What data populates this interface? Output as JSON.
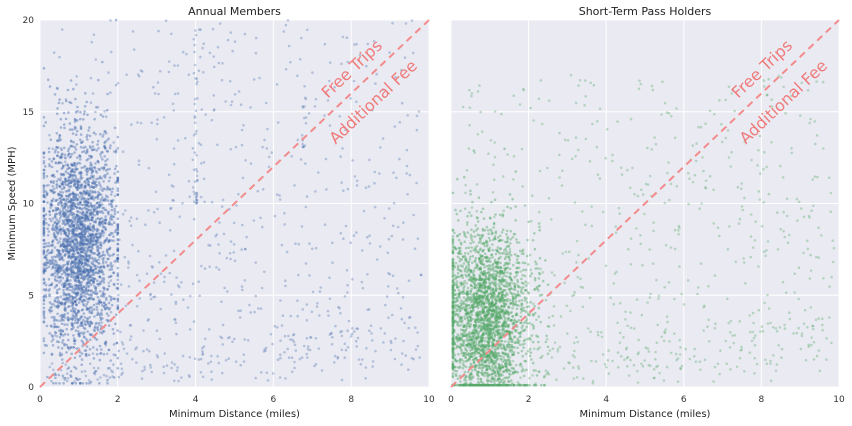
{
  "chart_data": [
    {
      "type": "scatter",
      "title": "Annual Members",
      "xlabel": "Minimum Distance (miles)",
      "ylabel": "Minimum Speed (MPH)",
      "xlim": [
        0,
        10
      ],
      "ylim": [
        0,
        20
      ],
      "x_ticks": [
        "0",
        "2",
        "4",
        "6",
        "8",
        "10"
      ],
      "y_ticks": [
        "0",
        "5",
        "10",
        "15",
        "20"
      ],
      "grid": true,
      "color": "#4c72b0",
      "reference_line": {
        "style": "dashed",
        "color": "#f28b8b",
        "from": [
          0,
          0
        ],
        "to": [
          10,
          20
        ]
      },
      "annotations": [
        "Free Trips",
        "Additional Fee"
      ],
      "series": [
        {
          "cluster": "dense core",
          "x_range": [
            0.1,
            2.0
          ],
          "y_range": [
            0.2,
            20
          ],
          "x_mean": 1.0,
          "y_mean": 7.8,
          "x_sd": 0.5,
          "y_sd": 3.0,
          "points": 2600
        },
        {
          "cluster": "sparse tail",
          "x_range": [
            0.2,
            9.8
          ],
          "y_range": [
            0.3,
            20
          ],
          "points": 800
        },
        {
          "cluster": "stripe near x=4",
          "x_range": [
            3.95,
            4.05
          ],
          "y_range": [
            10,
            20
          ],
          "points": 40
        },
        {
          "cluster": "stripe near x=6.8",
          "x_range": [
            6.75,
            6.85
          ],
          "y_range": [
            13,
            16
          ],
          "points": 15
        }
      ]
    },
    {
      "type": "scatter",
      "title": "Short-Term Pass Holders",
      "xlabel": "Minimum Distance (miles)",
      "ylabel": "",
      "xlim": [
        0,
        10
      ],
      "ylim": [
        0,
        20
      ],
      "x_ticks": [
        "0",
        "2",
        "4",
        "6",
        "8",
        "10"
      ],
      "grid": true,
      "color": "#55a868",
      "reference_line": {
        "style": "dashed",
        "color": "#f28b8b",
        "from": [
          0,
          0
        ],
        "to": [
          10,
          20
        ]
      },
      "annotations": [
        "Free Trips",
        "Additional Fee"
      ],
      "series": [
        {
          "cluster": "dense core",
          "x_range": [
            0.05,
            2.5
          ],
          "y_range": [
            0.1,
            14
          ],
          "x_mean": 0.9,
          "y_mean": 3.8,
          "x_sd": 0.55,
          "y_sd": 2.4,
          "points": 2600
        },
        {
          "cluster": "sparse tail",
          "x_range": [
            0.2,
            9.9
          ],
          "y_range": [
            0.1,
            17
          ],
          "points": 700
        }
      ]
    }
  ]
}
